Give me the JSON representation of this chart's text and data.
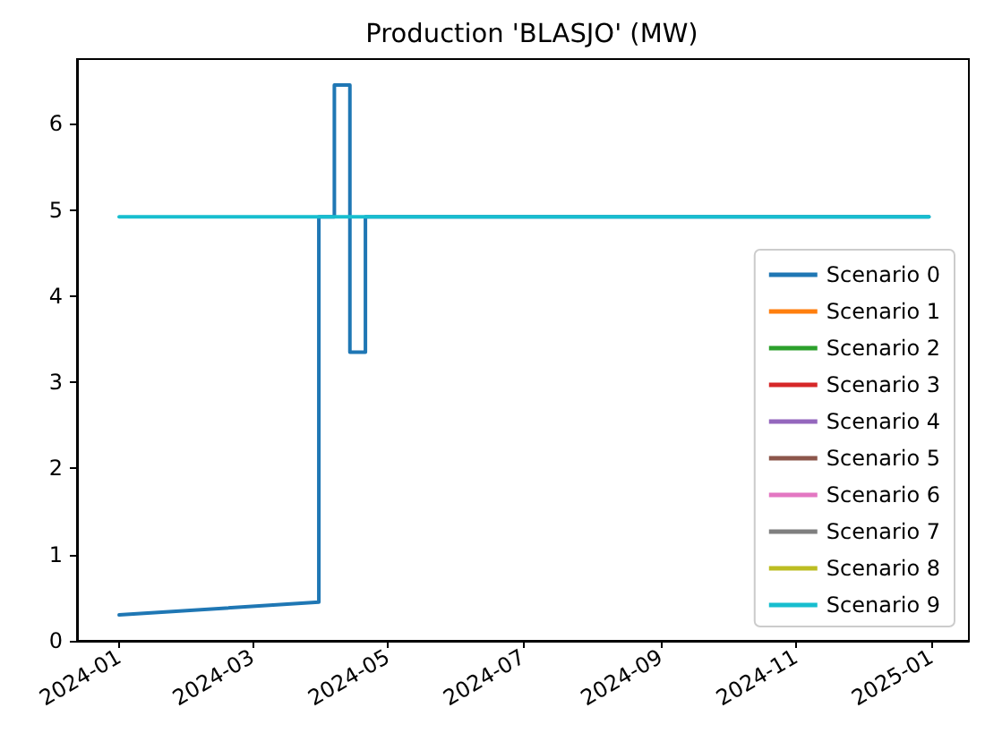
{
  "chart_data": {
    "type": "line",
    "title": "Production 'BLASJO' (MW)",
    "x": [
      "2024-01-01",
      "2024-12-31"
    ],
    "series": [
      {
        "name": "Scenario 0",
        "color": "#1f77b4",
        "x": [
          "2024-01-01",
          "2024-03-31",
          "2024-03-31",
          "2024-04-07",
          "2024-04-07",
          "2024-04-14",
          "2024-04-14",
          "2024-04-21",
          "2024-04-21",
          "2024-12-31"
        ],
        "values": [
          0.3,
          0.45,
          4.92,
          4.92,
          6.45,
          6.45,
          3.35,
          3.35,
          4.92,
          4.92
        ]
      },
      {
        "name": "Scenario 1",
        "color": "#ff7f0e",
        "values": [
          null,
          null
        ]
      },
      {
        "name": "Scenario 2",
        "color": "#2ca02c",
        "values": [
          null,
          null
        ]
      },
      {
        "name": "Scenario 3",
        "color": "#d62728",
        "values": [
          null,
          null
        ]
      },
      {
        "name": "Scenario 4",
        "color": "#9467bd",
        "values": [
          null,
          null
        ]
      },
      {
        "name": "Scenario 5",
        "color": "#8c564b",
        "values": [
          null,
          null
        ]
      },
      {
        "name": "Scenario 6",
        "color": "#e377c2",
        "values": [
          null,
          null
        ]
      },
      {
        "name": "Scenario 7",
        "color": "#7f7f7f",
        "values": [
          null,
          null
        ]
      },
      {
        "name": "Scenario 8",
        "color": "#bcbd22",
        "values": [
          null,
          null
        ]
      },
      {
        "name": "Scenario 9",
        "color": "#17becf",
        "values": [
          4.92,
          4.92
        ]
      }
    ],
    "xlim": [
      "2023-12-13",
      "2025-01-18"
    ],
    "xticks": [
      {
        "value": "2024-01-01",
        "label": "2024-01"
      },
      {
        "value": "2024-03-01",
        "label": "2024-03"
      },
      {
        "value": "2024-05-01",
        "label": "2024-05"
      },
      {
        "value": "2024-07-01",
        "label": "2024-07"
      },
      {
        "value": "2024-09-01",
        "label": "2024-09"
      },
      {
        "value": "2024-11-01",
        "label": "2024-11"
      },
      {
        "value": "2025-01-01",
        "label": "2025-01"
      }
    ],
    "ylim": [
      0,
      6.75
    ],
    "yticks": [
      0,
      1,
      2,
      3,
      4,
      5,
      6
    ],
    "legend": "bottom right",
    "grid": false,
    "marker": "none",
    "line_style": "solid"
  }
}
